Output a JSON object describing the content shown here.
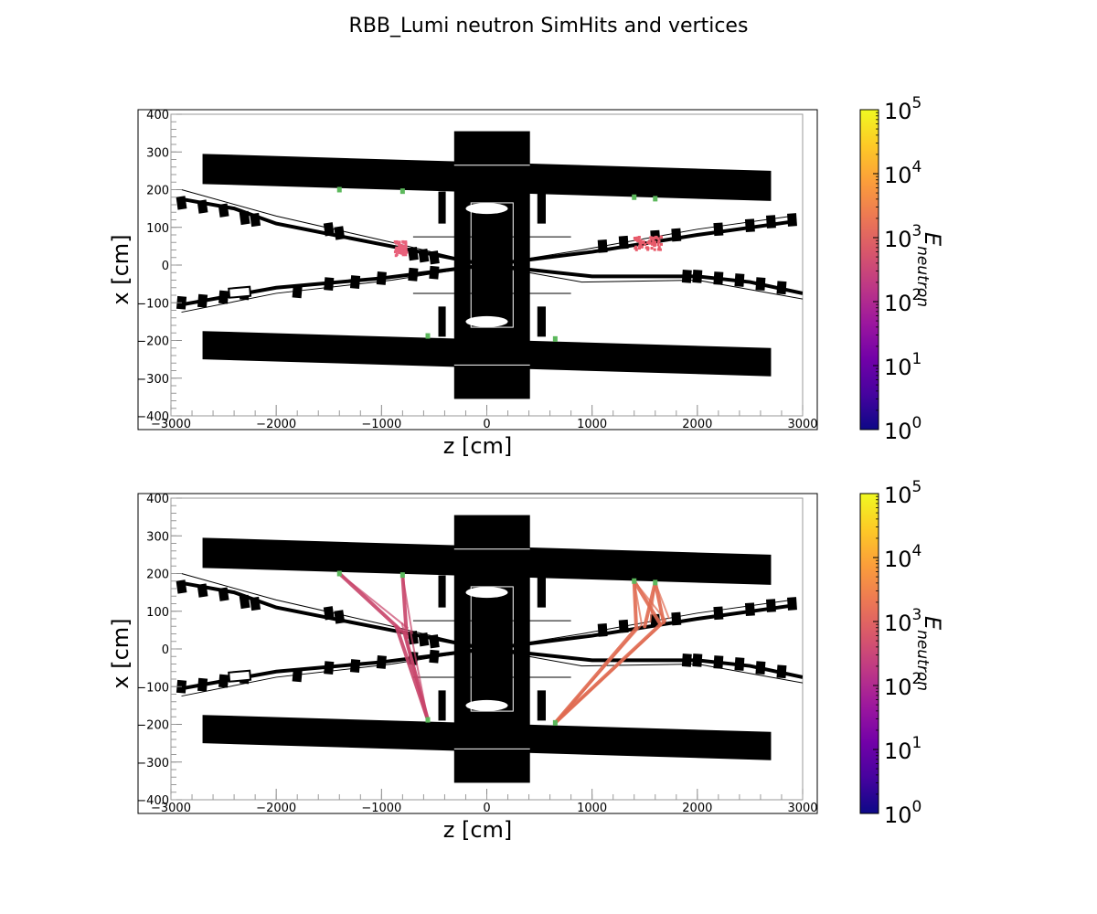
{
  "title": "RBB_Lumi neutron SimHits and vertices",
  "chart_data": [
    {
      "type": "scatter",
      "panel": "top",
      "xlabel": "z [cm]",
      "ylabel": "x [cm]",
      "xlim": [
        -3000,
        3000
      ],
      "ylim": [
        -400,
        400
      ],
      "xticks": [
        -3000,
        -2000,
        -1000,
        0,
        1000,
        2000,
        3000
      ],
      "xtick_labels": [
        "−3000",
        "−2000",
        "−1000",
        "0",
        "1000",
        "2000",
        "3000"
      ],
      "yticks": [
        -400,
        -300,
        -200,
        -100,
        0,
        100,
        200,
        300,
        400
      ],
      "ytick_labels": [
        "−400",
        "−300",
        "−200",
        "−100",
        "0",
        "100",
        "200",
        "300",
        "400"
      ],
      "colorbar": {
        "label_main": "E",
        "label_sub": "neutron",
        "scale": "log",
        "range": [
          1,
          100000
        ],
        "ticks": [
          {
            "base": "10",
            "exp": "0"
          },
          {
            "base": "10",
            "exp": "1"
          },
          {
            "base": "10",
            "exp": "2"
          },
          {
            "base": "10",
            "exp": "3"
          },
          {
            "base": "10",
            "exp": "4"
          },
          {
            "base": "10",
            "exp": "5"
          }
        ],
        "colormap": "plasma"
      },
      "vertices": [
        {
          "z": -1400,
          "x": 200
        },
        {
          "z": -800,
          "x": 196
        },
        {
          "z": -560,
          "x": -188
        },
        {
          "z": 1400,
          "x": 180
        },
        {
          "z": 1600,
          "x": 176
        },
        {
          "z": 650,
          "x": -196
        }
      ],
      "hit_clusters": [
        {
          "z_range": [
            -870,
            -760
          ],
          "x_range": [
            25,
            65
          ],
          "energy": 500
        },
        {
          "z_range": [
            1400,
            1660
          ],
          "x_range": [
            40,
            75
          ],
          "energy": 1500
        }
      ],
      "hit_colors": [
        "#e8607a",
        "#e85a6a"
      ],
      "vertex_color": "#5cb85c"
    },
    {
      "type": "scatter",
      "panel": "bottom",
      "xlabel": "z [cm]",
      "ylabel": "x [cm]",
      "xlim": [
        -3000,
        3000
      ],
      "ylim": [
        -400,
        400
      ],
      "xticks": [
        -3000,
        -2000,
        -1000,
        0,
        1000,
        2000,
        3000
      ],
      "xtick_labels": [
        "−3000",
        "−2000",
        "−1000",
        "0",
        "1000",
        "2000",
        "3000"
      ],
      "yticks": [
        -400,
        -300,
        -200,
        -100,
        0,
        100,
        200,
        300,
        400
      ],
      "ytick_labels": [
        "−400",
        "−300",
        "−200",
        "−100",
        "0",
        "100",
        "200",
        "300",
        "400"
      ],
      "colorbar": {
        "label_main": "E",
        "label_sub": "neutron",
        "scale": "log",
        "range": [
          1,
          100000
        ],
        "ticks": [
          {
            "base": "10",
            "exp": "0"
          },
          {
            "base": "10",
            "exp": "1"
          },
          {
            "base": "10",
            "exp": "2"
          },
          {
            "base": "10",
            "exp": "3"
          },
          {
            "base": "10",
            "exp": "4"
          },
          {
            "base": "10",
            "exp": "5"
          }
        ],
        "colormap": "plasma"
      },
      "vertices": [
        {
          "z": -1400,
          "x": 200
        },
        {
          "z": -800,
          "x": 196
        },
        {
          "z": -560,
          "x": -188
        },
        {
          "z": 1400,
          "x": 180
        },
        {
          "z": 1600,
          "x": 176
        },
        {
          "z": 650,
          "x": -196
        }
      ],
      "tracks": [
        {
          "from": {
            "z": -1400,
            "x": 200
          },
          "to": {
            "z": -800,
            "x": 45
          },
          "energy": 400
        },
        {
          "from": {
            "z": -800,
            "x": 196
          },
          "to": {
            "z": -760,
            "x": 30
          },
          "energy": 400
        },
        {
          "from": {
            "z": -560,
            "x": -188
          },
          "to": {
            "z": -860,
            "x": 60
          },
          "energy": 400
        },
        {
          "from": {
            "z": -560,
            "x": -188
          },
          "to": {
            "z": -780,
            "x": 40
          },
          "energy": 400
        },
        {
          "from": {
            "z": 1400,
            "x": 180
          },
          "to": {
            "z": 1420,
            "x": 55
          },
          "energy": 1200
        },
        {
          "from": {
            "z": 1400,
            "x": 180
          },
          "to": {
            "z": 1650,
            "x": 65
          },
          "energy": 1200
        },
        {
          "from": {
            "z": 1600,
            "x": 176
          },
          "to": {
            "z": 1500,
            "x": 60
          },
          "energy": 1200
        },
        {
          "from": {
            "z": 1600,
            "x": 176
          },
          "to": {
            "z": 1680,
            "x": 70
          },
          "energy": 1200
        },
        {
          "from": {
            "z": 650,
            "x": -196
          },
          "to": {
            "z": 1420,
            "x": 55
          },
          "energy": 1200
        },
        {
          "from": {
            "z": 650,
            "x": -196
          },
          "to": {
            "z": 1650,
            "x": 65
          },
          "energy": 1200
        }
      ],
      "track_colors": [
        "#c8446a",
        "#e06a50"
      ],
      "vertex_color": "#5cb85c"
    }
  ]
}
